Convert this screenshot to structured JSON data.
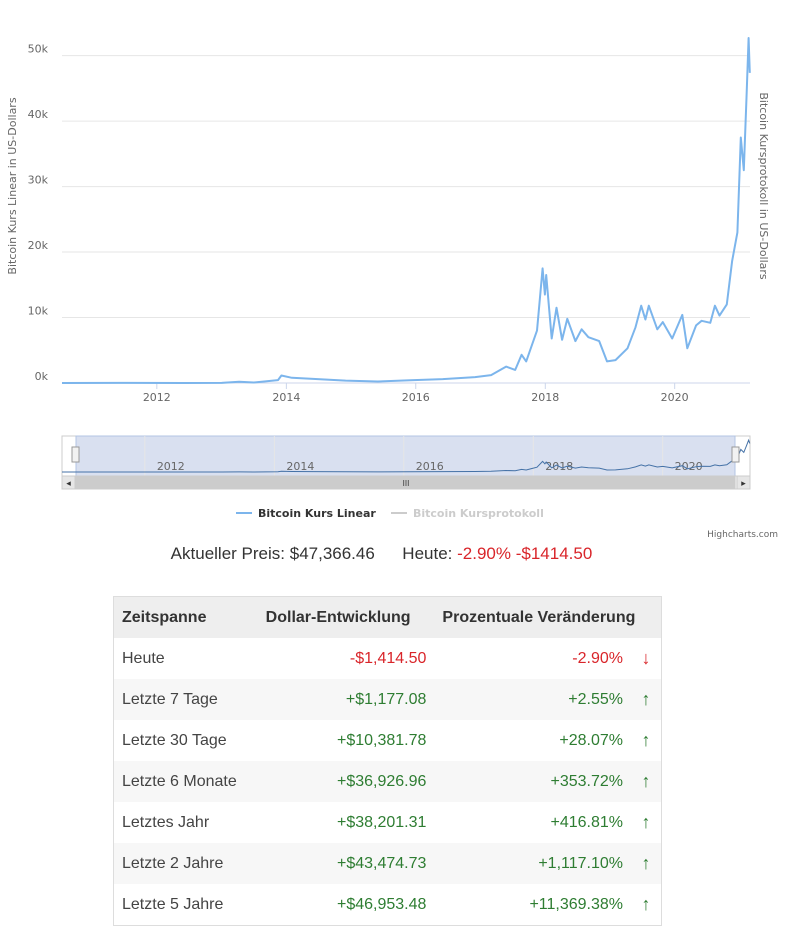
{
  "chart_data": {
    "type": "line",
    "series": [
      {
        "name": "Bitcoin Kurs Linear",
        "color": "#7cb5ec",
        "points": [
          [
            "2010-07-15",
            0
          ],
          [
            "2011-06-01",
            20
          ],
          [
            "2012-06-01",
            6
          ],
          [
            "2013-01-01",
            13
          ],
          [
            "2013-04-10",
            200
          ],
          [
            "2013-07-01",
            80
          ],
          [
            "2013-11-15",
            450
          ],
          [
            "2013-12-04",
            1150
          ],
          [
            "2014-02-01",
            800
          ],
          [
            "2014-06-01",
            630
          ],
          [
            "2014-12-01",
            370
          ],
          [
            "2015-06-01",
            230
          ],
          [
            "2015-12-01",
            430
          ],
          [
            "2016-06-01",
            600
          ],
          [
            "2016-12-01",
            900
          ],
          [
            "2017-03-01",
            1200
          ],
          [
            "2017-05-25",
            2500
          ],
          [
            "2017-07-15",
            2000
          ],
          [
            "2017-08-20",
            4300
          ],
          [
            "2017-09-15",
            3300
          ],
          [
            "2017-10-20",
            6000
          ],
          [
            "2017-11-15",
            8000
          ],
          [
            "2017-12-17",
            17500
          ],
          [
            "2017-12-30",
            13500
          ],
          [
            "2018-01-06",
            16500
          ],
          [
            "2018-02-06",
            6800
          ],
          [
            "2018-03-05",
            11500
          ],
          [
            "2018-04-06",
            6600
          ],
          [
            "2018-05-05",
            9800
          ],
          [
            "2018-06-20",
            6400
          ],
          [
            "2018-07-25",
            8200
          ],
          [
            "2018-09-01",
            7000
          ],
          [
            "2018-11-01",
            6400
          ],
          [
            "2018-12-15",
            3300
          ],
          [
            "2019-02-01",
            3500
          ],
          [
            "2019-04-10",
            5300
          ],
          [
            "2019-05-25",
            8500
          ],
          [
            "2019-06-26",
            11800
          ],
          [
            "2019-07-20",
            9700
          ],
          [
            "2019-08-08",
            11800
          ],
          [
            "2019-09-25",
            8200
          ],
          [
            "2019-10-26",
            9300
          ],
          [
            "2019-12-18",
            6800
          ],
          [
            "2020-02-13",
            10400
          ],
          [
            "2020-03-12",
            5300
          ],
          [
            "2020-05-01",
            8800
          ],
          [
            "2020-06-01",
            9500
          ],
          [
            "2020-07-20",
            9200
          ],
          [
            "2020-08-15",
            11800
          ],
          [
            "2020-09-10",
            10300
          ],
          [
            "2020-10-21",
            12000
          ],
          [
            "2020-11-20",
            18600
          ],
          [
            "2020-12-20",
            23000
          ],
          [
            "2021-01-08",
            37500
          ],
          [
            "2021-01-25",
            32500
          ],
          [
            "2021-02-10",
            44000
          ],
          [
            "2021-02-21",
            52700
          ],
          [
            "2021-02-28",
            47366
          ]
        ]
      },
      {
        "name": "Bitcoin Kursprotokoll",
        "color": "#cccccc",
        "points": []
      }
    ],
    "xlim": [
      "2010-07-15",
      "2021-03-01"
    ],
    "ylim": [
      0,
      53000
    ],
    "x_ticks": [
      "2012",
      "2014",
      "2016",
      "2018",
      "2020"
    ],
    "y_ticks": [
      {
        "value": 0,
        "label": "0k"
      },
      {
        "value": 10000,
        "label": "10k"
      },
      {
        "value": 20000,
        "label": "20k"
      },
      {
        "value": 30000,
        "label": "30k"
      },
      {
        "value": 40000,
        "label": "40k"
      },
      {
        "value": 50000,
        "label": "50k"
      }
    ],
    "ylabel_left": "Bitcoin Kurs Linear in US-Dollars",
    "ylabel_right": "Bitcoin Kursprotokoll in US-Dollars",
    "grid": true,
    "legend_position": "bottom-center",
    "navigator": {
      "x_ticks": [
        "2012",
        "2014",
        "2016",
        "2018",
        "2020"
      ],
      "handle_glyph": "III",
      "scroll_left": "◂",
      "scroll_right": "▸"
    },
    "credit": "Highcharts.com"
  },
  "price": {
    "label": "Aktueller Preis:",
    "value": "$47,366.46",
    "today_label": "Heute:",
    "today_percent": "-2.90%",
    "today_dollar": "-$1414.50"
  },
  "table": {
    "headers": [
      "Zeitspanne",
      "Dollar-Entwicklung",
      "Prozentuale Veränderung"
    ],
    "rows": [
      {
        "period": "Heute",
        "dollar": "-$1,414.50",
        "percent": "-2.90%",
        "arrow": "↓",
        "direction": "down"
      },
      {
        "period": "Letzte 7 Tage",
        "dollar": "+$1,177.08",
        "percent": "+2.55%",
        "arrow": "↑",
        "direction": "up"
      },
      {
        "period": "Letzte 30 Tage",
        "dollar": "+$10,381.78",
        "percent": "+28.07%",
        "arrow": "↑",
        "direction": "up"
      },
      {
        "period": "Letzte 6 Monate",
        "dollar": "+$36,926.96",
        "percent": "+353.72%",
        "arrow": "↑",
        "direction": "up"
      },
      {
        "period": "Letztes Jahr",
        "dollar": "+$38,201.31",
        "percent": "+416.81%",
        "arrow": "↑",
        "direction": "up"
      },
      {
        "period": "Letzte 2 Jahre",
        "dollar": "+$43,474.73",
        "percent": "+1,117.10%",
        "arrow": "↑",
        "direction": "up"
      },
      {
        "period": "Letzte 5 Jahre",
        "dollar": "+$46,953.48",
        "percent": "+11,369.38%",
        "arrow": "↑",
        "direction": "up"
      }
    ]
  }
}
